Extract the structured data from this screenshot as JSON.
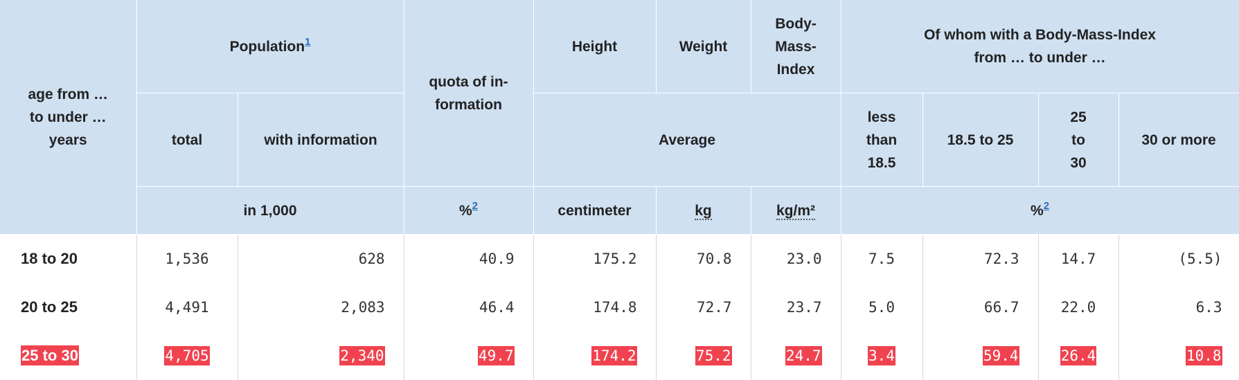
{
  "headers": {
    "age": "age from … to under … years",
    "population": "Population",
    "population_note": "1",
    "quota": "quota of in-formation",
    "height": "Height",
    "weight": "Weight",
    "bmi": "Body-Mass-Index",
    "bmi_group": "Of whom with a Body-Mass-Index from … to under …",
    "total": "total",
    "with_information": "with information",
    "average": "Average",
    "less_than_18_5": "less than 18.5",
    "range_18_5_to_25": "18.5 to 25",
    "range_25_to_30": "25 to 30",
    "range_30_or_more": "30 or more",
    "unit_thousand": "in 1,000",
    "unit_percent": "%",
    "unit_percent_note": "2",
    "unit_centimeter": "centimeter",
    "unit_kg": "kg",
    "unit_kg_m2": "kg/m²",
    "unit_percent_bmi": "%",
    "unit_percent_bmi_note": "2"
  },
  "rows": [
    {
      "age": "18 to 20",
      "total": "1,536",
      "with_information": "628",
      "quota": "40.9",
      "height": "175.2",
      "weight": "70.8",
      "bmi": "23.0",
      "less_than_18_5": "7.5",
      "range_18_5_to_25": "72.3",
      "range_25_to_30": "14.7",
      "range_30_or_more": "(5.5)",
      "highlighted": false
    },
    {
      "age": "20 to 25",
      "total": "4,491",
      "with_information": "2,083",
      "quota": "46.4",
      "height": "174.8",
      "weight": "72.7",
      "bmi": "23.7",
      "less_than_18_5": "5.0",
      "range_18_5_to_25": "66.7",
      "range_25_to_30": "22.0",
      "range_30_or_more": "6.3",
      "highlighted": false
    },
    {
      "age": "25 to 30",
      "total": "4,705",
      "with_information": "2,340",
      "quota": "49.7",
      "height": "174.2",
      "weight": "75.2",
      "bmi": "24.7",
      "less_than_18_5": "3.4",
      "range_18_5_to_25": "59.4",
      "range_25_to_30": "26.4",
      "range_30_or_more": "10.8",
      "highlighted": true
    }
  ],
  "colors": {
    "header_background": "#cfe0f1",
    "highlight": "#f0434f",
    "link": "#2f6eb5"
  }
}
